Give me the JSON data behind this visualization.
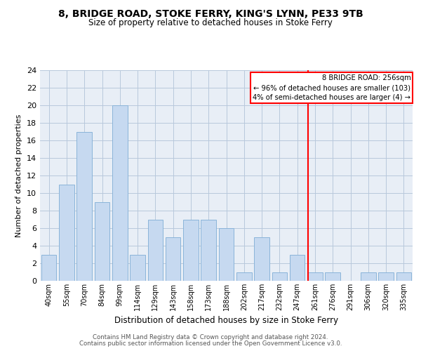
{
  "title": "8, BRIDGE ROAD, STOKE FERRY, KING'S LYNN, PE33 9TB",
  "subtitle": "Size of property relative to detached houses in Stoke Ferry",
  "xlabel": "Distribution of detached houses by size in Stoke Ferry",
  "ylabel": "Number of detached properties",
  "categories": [
    "40sqm",
    "55sqm",
    "70sqm",
    "84sqm",
    "99sqm",
    "114sqm",
    "129sqm",
    "143sqm",
    "158sqm",
    "173sqm",
    "188sqm",
    "202sqm",
    "217sqm",
    "232sqm",
    "247sqm",
    "261sqm",
    "276sqm",
    "291sqm",
    "306sqm",
    "320sqm",
    "335sqm"
  ],
  "values": [
    3,
    11,
    17,
    9,
    20,
    3,
    7,
    5,
    7,
    7,
    6,
    1,
    5,
    1,
    3,
    1,
    1,
    0,
    1,
    1,
    1
  ],
  "bar_color": "#c6d9f0",
  "bar_edge_color": "#8ab4d9",
  "grid_color": "#b8c8dc",
  "background_color": "#e8eef6",
  "red_line_index": 14.6,
  "annotation_title": "8 BRIDGE ROAD: 256sqm",
  "annotation_line1": "← 96% of detached houses are smaller (103)",
  "annotation_line2": "4% of semi-detached houses are larger (4) →",
  "footer1": "Contains HM Land Registry data © Crown copyright and database right 2024.",
  "footer2": "Contains public sector information licensed under the Open Government Licence v3.0.",
  "ylim": [
    0,
    24
  ],
  "yticks": [
    0,
    2,
    4,
    6,
    8,
    10,
    12,
    14,
    16,
    18,
    20,
    22,
    24
  ]
}
